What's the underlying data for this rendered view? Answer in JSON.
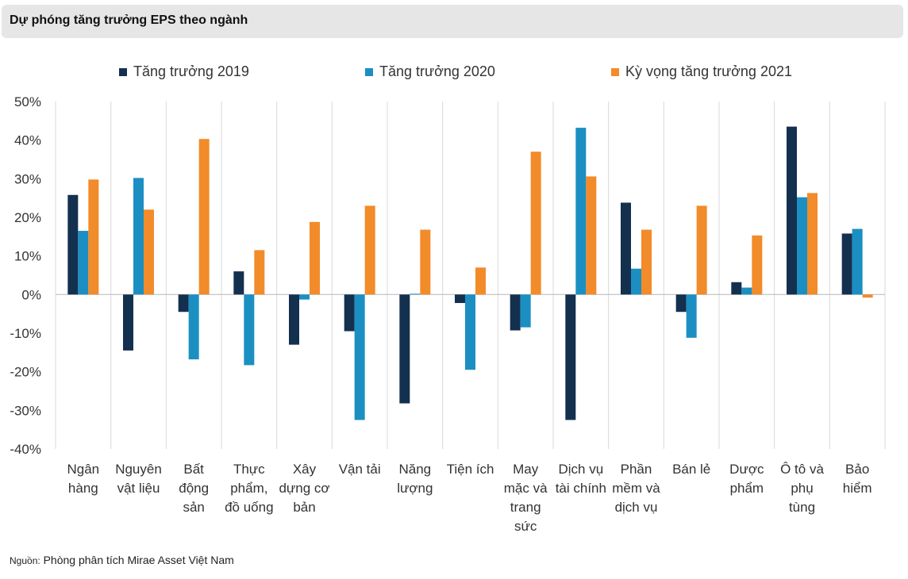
{
  "header": {
    "title": "Dự phóng tăng trưởng EPS theo ngành"
  },
  "source": {
    "label": "Nguồn:",
    "text": "Phòng phân tích Mirae Asset Việt Nam"
  },
  "colors": {
    "series_2019": "#14304f",
    "series_2020": "#1b8fc2",
    "series_2021": "#f28b2a",
    "grid": "#d9d9d9",
    "axis": "#bfbfbf"
  },
  "chart_data": {
    "type": "bar",
    "title": "Dự phóng tăng trưởng EPS theo ngành",
    "xlabel": "",
    "ylabel": "",
    "ylim": [
      -40,
      50
    ],
    "yticks": [
      50,
      40,
      30,
      20,
      10,
      0,
      -10,
      -20,
      -30,
      -40
    ],
    "ytick_labels": [
      "50%",
      "40%",
      "30%",
      "20%",
      "10%",
      "0%",
      "-10%",
      "-20%",
      "-30%",
      "-40%"
    ],
    "legend_position": "top",
    "categories": [
      [
        "Ngân",
        "hàng"
      ],
      [
        "Nguyên",
        "vật liệu"
      ],
      [
        "Bất",
        "động",
        "sản"
      ],
      [
        "Thực",
        "phẩm,",
        "đồ uống"
      ],
      [
        "Xây",
        "dựng cơ",
        "bản"
      ],
      [
        "Vận tải"
      ],
      [
        "Năng",
        "lượng"
      ],
      [
        "Tiện ích"
      ],
      [
        "May",
        "mặc và",
        "trang",
        "sức"
      ],
      [
        "Dịch vụ",
        "tài chính"
      ],
      [
        "Phần",
        "mềm và",
        "dịch vụ"
      ],
      [
        "Bán lẻ"
      ],
      [
        "Dược",
        "phẩm"
      ],
      [
        "Ô tô và",
        "phụ",
        "tùng"
      ],
      [
        "Bảo",
        "hiểm"
      ]
    ],
    "series": [
      {
        "name": "Tăng trưởng 2019",
        "color": "#14304f",
        "values": [
          25.8,
          -14.5,
          -4.5,
          6.0,
          -13.0,
          -9.5,
          -28.2,
          -2.2,
          -9.3,
          -32.5,
          23.8,
          -4.5,
          3.2,
          43.5,
          15.8
        ]
      },
      {
        "name": "Tăng trưởng 2020",
        "color": "#1b8fc2",
        "values": [
          16.5,
          30.2,
          -16.8,
          -18.3,
          -1.3,
          -32.5,
          0.2,
          -19.5,
          -8.5,
          43.2,
          6.7,
          -11.2,
          1.8,
          25.2,
          17.0
        ]
      },
      {
        "name": "Kỳ vọng tăng trưởng 2021",
        "color": "#f28b2a",
        "values": [
          29.8,
          22.0,
          40.3,
          11.5,
          18.8,
          23.0,
          16.8,
          7.0,
          37.0,
          30.6,
          16.8,
          23.0,
          15.3,
          26.3,
          -0.8
        ]
      }
    ]
  }
}
